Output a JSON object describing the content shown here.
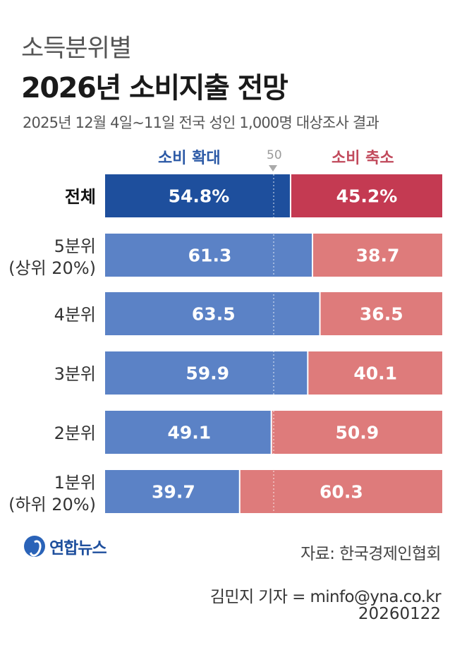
{
  "header": {
    "title_small": "소득분위별",
    "title_main": "2026년 소비지출 전망",
    "subtitle": "2025년 12월 4일~11일 전국 성인 1,000명 대상조사 결과"
  },
  "chart_data": {
    "type": "bar",
    "stacked": true,
    "orientation": "horizontal",
    "reference_line": {
      "value": 50,
      "label": "50"
    },
    "categories": [
      "전체",
      "5분위",
      "4분위",
      "3분위",
      "2분위",
      "1분위"
    ],
    "category_sublabels": [
      "",
      "(상위 20%)",
      "",
      "",
      "",
      "(하위 20%)"
    ],
    "series": [
      {
        "name": "소비 확대",
        "values": [
          54.8,
          61.3,
          63.5,
          59.9,
          49.1,
          39.7
        ],
        "labels": [
          "54.8%",
          "61.3",
          "63.5",
          "59.9",
          "49.1",
          "39.7"
        ],
        "color": "#5b82c6",
        "total_color": "#1e4f9d"
      },
      {
        "name": "소비 축소",
        "values": [
          45.2,
          38.7,
          36.5,
          40.1,
          50.9,
          60.3
        ],
        "labels": [
          "45.2%",
          "38.7",
          "36.5",
          "40.1",
          "50.9",
          "60.3"
        ],
        "color": "#de7b7b",
        "total_color": "#c43a52"
      }
    ],
    "xlim": [
      0,
      100
    ]
  },
  "footer": {
    "logo_text": "연합뉴스",
    "source": "자료: 한국경제인협회",
    "reporter": "김민지 기자 = minfo@yna.co.kr",
    "date": "20260122"
  }
}
